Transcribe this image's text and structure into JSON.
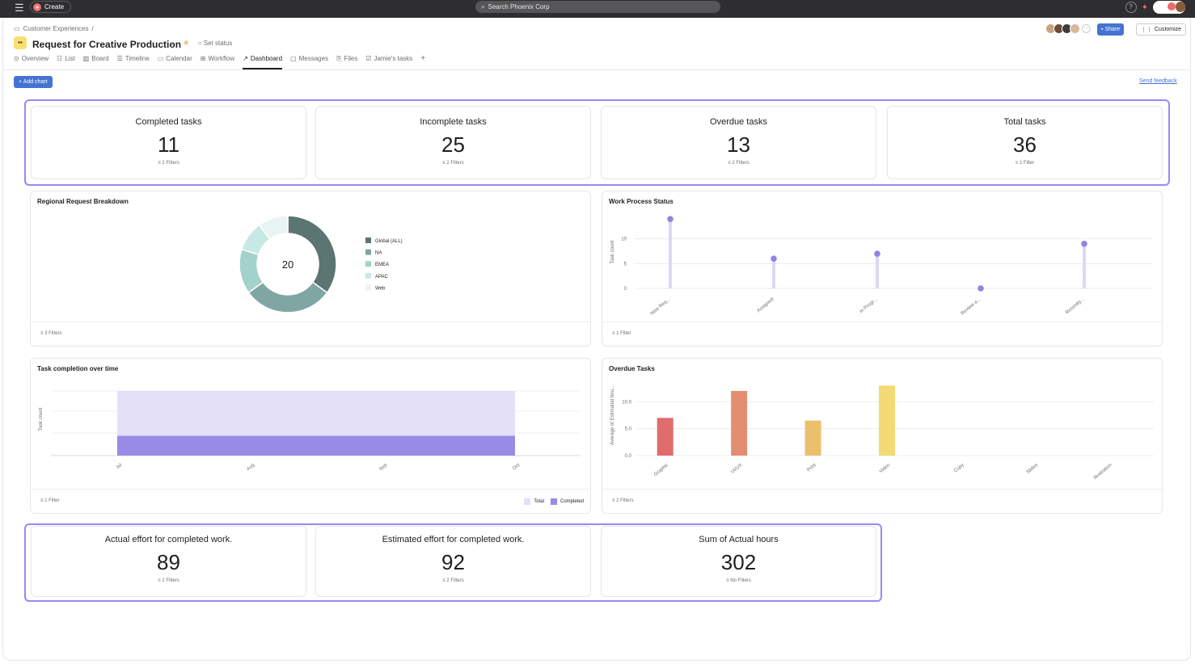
{
  "topbar": {
    "menu_icon": "hamburger-icon",
    "create_label": "Create",
    "search_placeholder": "Search Phoenix Corp",
    "help_icon": "help-icon"
  },
  "header": {
    "breadcrumb": "Customer Experiences",
    "breadcrumb_sep": "/",
    "project_title": "Request for Creative Production",
    "set_status_label": "Set status",
    "share_label": "Share",
    "customize_label": "Customize"
  },
  "tabs": [
    {
      "label": "Overview",
      "icon": "overview-icon"
    },
    {
      "label": "List",
      "icon": "list-icon"
    },
    {
      "label": "Board",
      "icon": "board-icon"
    },
    {
      "label": "Timeline",
      "icon": "timeline-icon"
    },
    {
      "label": "Calendar",
      "icon": "calendar-icon"
    },
    {
      "label": "Workflow",
      "icon": "workflow-icon"
    },
    {
      "label": "Dashboard",
      "icon": "dashboard-icon",
      "active": true
    },
    {
      "label": "Messages",
      "icon": "messages-icon"
    },
    {
      "label": "Files",
      "icon": "files-icon"
    },
    {
      "label": "Jamie's tasks",
      "icon": "tasks-icon"
    }
  ],
  "toolbar": {
    "add_chart_label": "+ Add chart",
    "send_feedback_label": "Send feedback"
  },
  "stats_top": [
    {
      "title": "Completed tasks",
      "value": "11",
      "filter": "2 Filters"
    },
    {
      "title": "Incomplete tasks",
      "value": "25",
      "filter": "2 Filters"
    },
    {
      "title": "Overdue tasks",
      "value": "13",
      "filter": "2 Filters"
    },
    {
      "title": "Total tasks",
      "value": "36",
      "filter": "1 Filter"
    }
  ],
  "stats_bottom": [
    {
      "title": "Actual effort for completed work.",
      "value": "89",
      "filter": "2 Filters"
    },
    {
      "title": "Estimated effort for completed work.",
      "value": "92",
      "filter": "2 Filters"
    },
    {
      "title": "Sum of Actual hours",
      "value": "302",
      "filter": "No Filters"
    }
  ],
  "charts": {
    "regional": {
      "filter": "3 Filters"
    },
    "work_process": {
      "filter": "1 Filter"
    },
    "completion": {
      "filter": "1 Filter"
    },
    "overdue": {
      "filter": "2 Filters"
    }
  },
  "chart_data": [
    {
      "type": "pie",
      "title": "Regional Request Breakdown",
      "center_label": "20",
      "labels": [
        "Global (ALL)",
        "NA",
        "EMEA",
        "APAC",
        "Web"
      ],
      "values": [
        7,
        6,
        3,
        2,
        2
      ],
      "colors": [
        "#5a7572",
        "#7fa6a2",
        "#a3d1cc",
        "#c7e8e4",
        "#e8f5f3"
      ],
      "legend": "right"
    },
    {
      "type": "scatter",
      "title": "Work Process Status",
      "categories": [
        "New Req...",
        "Assigned",
        "In Progr...",
        "Review a...",
        "Recently..."
      ],
      "values": [
        14,
        6,
        7,
        0,
        9
      ],
      "ylabel": "Task count",
      "yticks": [
        0,
        5,
        10
      ],
      "ylim": [
        0,
        15
      ],
      "color": "#9184e0",
      "stem_color": "#dcd8f4"
    },
    {
      "type": "area",
      "title": "Task completion over time",
      "categories": [
        "Jul",
        "Aug",
        "Sep",
        "Oct"
      ],
      "series": [
        {
          "name": "Total",
          "values": [
            36,
            36,
            36,
            36
          ],
          "color": "#e3e0f7"
        },
        {
          "name": "Completed",
          "values": [
            11,
            11,
            11,
            11
          ],
          "color": "#978be6"
        }
      ],
      "ylabel": "Task count",
      "ylim": [
        0,
        45
      ],
      "legend": "bottom-right"
    },
    {
      "type": "bar",
      "title": "Overdue Tasks",
      "categories": [
        "Graphic",
        "UI/UX",
        "Print",
        "Video",
        "Copy",
        "Slides",
        "Illustration"
      ],
      "values": [
        7,
        12,
        6.5,
        13,
        0,
        0,
        0
      ],
      "colors": [
        "#e06c6c",
        "#e38e73",
        "#ebc06d",
        "#f3da74",
        "#cccccc",
        "#cccccc",
        "#cccccc"
      ],
      "ylabel": "Average of Estimated hou...",
      "yticks": [
        "0.0",
        "5.0",
        "10.0"
      ],
      "ylim": [
        0,
        15
      ]
    }
  ]
}
